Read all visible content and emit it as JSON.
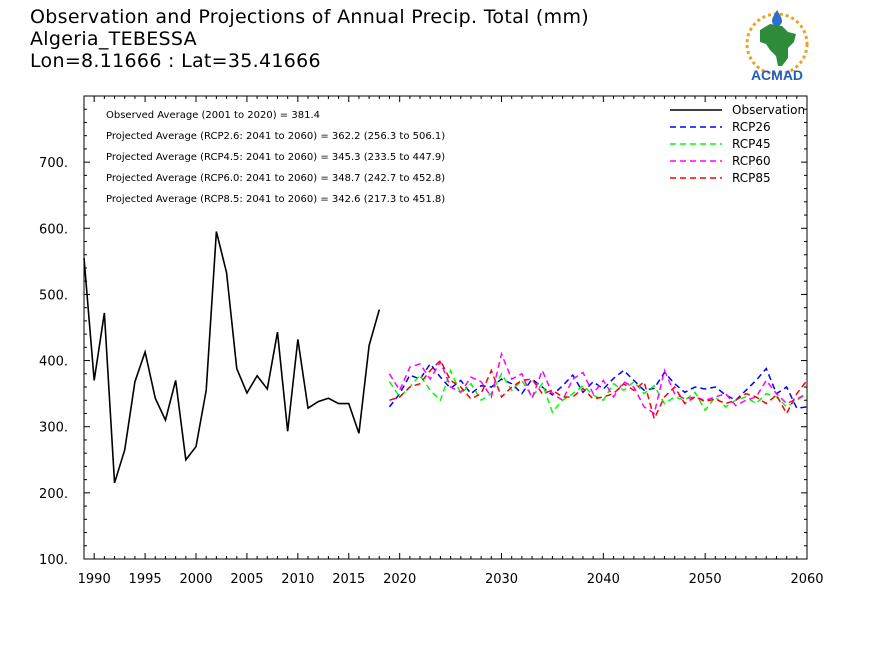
{
  "header": {
    "title_line1": "Observation and Projections of Annual Precip. Total (mm)",
    "title_line2": "Algeria_TEBESSA",
    "title_line3": "Lon=8.11666 : Lat=35.41666"
  },
  "logo": {
    "text": "ACMAD",
    "icon": "africa-map-logo-icon",
    "colors": {
      "africa": "#2e8b3a",
      "sun": "#f0a020",
      "drop": "#2b6fd6",
      "text": "#1f5fbf"
    }
  },
  "chart_data": {
    "type": "line",
    "xlim": [
      1989,
      2060
    ],
    "ylim": [
      100,
      800
    ],
    "x_ticks": [
      1990,
      1995,
      2000,
      2005,
      2010,
      2015,
      2020,
      2030,
      2040,
      2050,
      2060
    ],
    "y_ticks": [
      100,
      200,
      300,
      400,
      500,
      600,
      700
    ],
    "y_tick_labels": [
      "100.",
      "200.",
      "300.",
      "400.",
      "500.",
      "600.",
      "700."
    ],
    "annotations": [
      "Observed Average (2001 to 2020) = 381.4",
      "Projected Average (RCP2.6: 2041 to 2060) = 362.2 (256.3 to 506.1)",
      "Projected Average (RCP4.5: 2041 to 2060) = 345.3 (233.5 to 447.9)",
      "Projected Average (RCP6.0: 2041 to 2060) = 348.7 (242.7 to 452.8)",
      "Projected Average (RCP8.5: 2041 to 2060) = 342.6 (217.3 to 451.8)"
    ],
    "legend_position": "top-right",
    "series": [
      {
        "name": "Observation",
        "color": "#000000",
        "dash": "solid",
        "x": [
          1989,
          1990,
          1991,
          1992,
          1993,
          1994,
          1995,
          1996,
          1997,
          1998,
          1999,
          2000,
          2001,
          2002,
          2003,
          2004,
          2005,
          2006,
          2007,
          2008,
          2009,
          2010,
          2011,
          2012,
          2013,
          2014,
          2015,
          2016,
          2017,
          2018,
          2019
        ],
        "values": [
          555,
          370,
          472,
          215,
          265,
          368,
          413,
          343,
          310,
          370,
          250,
          270,
          355,
          595,
          533,
          388,
          351,
          377,
          357,
          443,
          293,
          432,
          328,
          338,
          343,
          335,
          335,
          290,
          423,
          477,
          null
        ]
      },
      {
        "name": "RCP26",
        "color": "#0000ff",
        "dash": "dashed",
        "x": [
          2019,
          2020,
          2021,
          2022,
          2023,
          2024,
          2025,
          2026,
          2027,
          2028,
          2029,
          2030,
          2031,
          2032,
          2033,
          2034,
          2035,
          2036,
          2037,
          2038,
          2039,
          2040,
          2041,
          2042,
          2043,
          2044,
          2045,
          2046,
          2047,
          2048,
          2049,
          2050,
          2051,
          2052,
          2053,
          2054,
          2055,
          2056,
          2057,
          2058,
          2059,
          2060
        ],
        "values": [
          330,
          350,
          378,
          372,
          395,
          375,
          358,
          370,
          350,
          362,
          360,
          372,
          365,
          350,
          372,
          360,
          348,
          362,
          378,
          352,
          368,
          357,
          373,
          385,
          370,
          355,
          358,
          382,
          365,
          352,
          360,
          357,
          360,
          348,
          340,
          355,
          370,
          388,
          350,
          360,
          328,
          330
        ]
      },
      {
        "name": "RCP45",
        "color": "#00ff00",
        "dash": "dashed",
        "x": [
          2019,
          2020,
          2021,
          2022,
          2023,
          2024,
          2025,
          2026,
          2027,
          2028,
          2029,
          2030,
          2031,
          2032,
          2033,
          2034,
          2035,
          2036,
          2037,
          2038,
          2039,
          2040,
          2041,
          2042,
          2043,
          2044,
          2045,
          2046,
          2047,
          2048,
          2049,
          2050,
          2051,
          2052,
          2053,
          2054,
          2055,
          2056,
          2057,
          2058,
          2059,
          2060
        ],
        "values": [
          368,
          345,
          360,
          378,
          355,
          340,
          385,
          350,
          365,
          340,
          350,
          380,
          355,
          370,
          345,
          365,
          322,
          340,
          350,
          362,
          348,
          340,
          365,
          355,
          368,
          350,
          362,
          335,
          345,
          340,
          352,
          325,
          345,
          330,
          340,
          345,
          335,
          350,
          345,
          330,
          340,
          350
        ]
      },
      {
        "name": "RCP60",
        "color": "#ff00ff",
        "dash": "dashed",
        "x": [
          2019,
          2020,
          2021,
          2022,
          2023,
          2024,
          2025,
          2026,
          2027,
          2028,
          2029,
          2030,
          2031,
          2032,
          2033,
          2034,
          2035,
          2036,
          2037,
          2038,
          2039,
          2040,
          2041,
          2042,
          2043,
          2044,
          2045,
          2046,
          2047,
          2048,
          2049,
          2050,
          2051,
          2052,
          2053,
          2054,
          2055,
          2056,
          2057,
          2058,
          2059,
          2060
        ],
        "values": [
          380,
          355,
          390,
          395,
          372,
          398,
          360,
          352,
          375,
          368,
          345,
          410,
          372,
          380,
          343,
          385,
          350,
          340,
          372,
          382,
          350,
          370,
          345,
          368,
          360,
          330,
          320,
          385,
          350,
          342,
          345,
          340,
          345,
          350,
          332,
          340,
          345,
          370,
          350,
          335,
          342,
          350
        ]
      },
      {
        "name": "RCP85",
        "color": "#ff0000",
        "dash": "dashed",
        "x": [
          2019,
          2020,
          2021,
          2022,
          2023,
          2024,
          2025,
          2026,
          2027,
          2028,
          2029,
          2030,
          2031,
          2032,
          2033,
          2034,
          2035,
          2036,
          2037,
          2038,
          2039,
          2040,
          2041,
          2042,
          2043,
          2044,
          2045,
          2046,
          2047,
          2048,
          2049,
          2050,
          2051,
          2052,
          2053,
          2054,
          2055,
          2056,
          2057,
          2058,
          2059,
          2060
        ],
        "values": [
          340,
          345,
          360,
          365,
          385,
          400,
          370,
          360,
          342,
          350,
          385,
          345,
          360,
          370,
          372,
          350,
          355,
          345,
          345,
          358,
          342,
          345,
          350,
          365,
          355,
          368,
          312,
          345,
          360,
          335,
          345,
          338,
          342,
          335,
          340,
          350,
          345,
          335,
          348,
          320,
          350,
          370
        ]
      }
    ]
  }
}
